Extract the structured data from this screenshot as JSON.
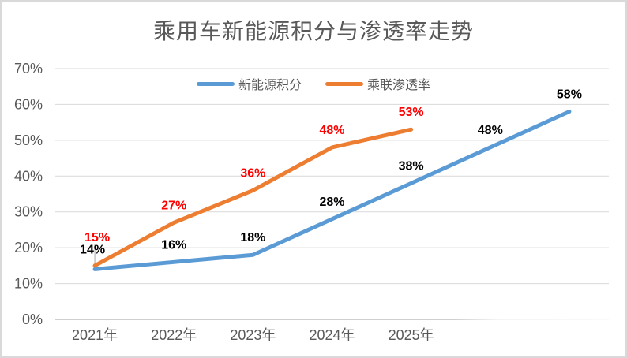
{
  "chart_data": {
    "type": "line",
    "title": "乘用车新能源积分与渗透率走势",
    "title_color": "#595959",
    "x_tick_labels": [
      "2021年",
      "2022年",
      "2023年",
      "2024年",
      "2025年"
    ],
    "x_slot_count": 7,
    "x_axis": {
      "tick_label_color": "#595959"
    },
    "y_axis": {
      "min": 0,
      "max": 70,
      "step": 10,
      "tick_labels": [
        "0%",
        "10%",
        "20%",
        "30%",
        "40%",
        "50%",
        "60%",
        "70%"
      ],
      "tick_label_color": "#595959"
    },
    "series": [
      {
        "name": "新能源积分",
        "color": "#5B9BD5",
        "data_label_color": "#000000",
        "values": [
          14,
          16,
          18,
          28,
          38,
          48,
          58
        ],
        "data_labels": [
          "14%",
          "16%",
          "18%",
          "28%",
          "38%",
          "48%",
          "58%"
        ]
      },
      {
        "name": "乘联渗透率",
        "color": "#ED7D31",
        "data_label_color": "#FF0000",
        "values": [
          15,
          27,
          36,
          48,
          53
        ],
        "data_labels": [
          "15%",
          "27%",
          "36%",
          "48%",
          "53%"
        ]
      }
    ],
    "data_label_suffix": "%",
    "grid": true,
    "gridline_color": "#D9D9D9",
    "axis_line_color": "#BFBFBF",
    "leader_line_color": "#A6A6A6",
    "frame_border_color": "#D9D9D9",
    "legend_position": "top"
  }
}
